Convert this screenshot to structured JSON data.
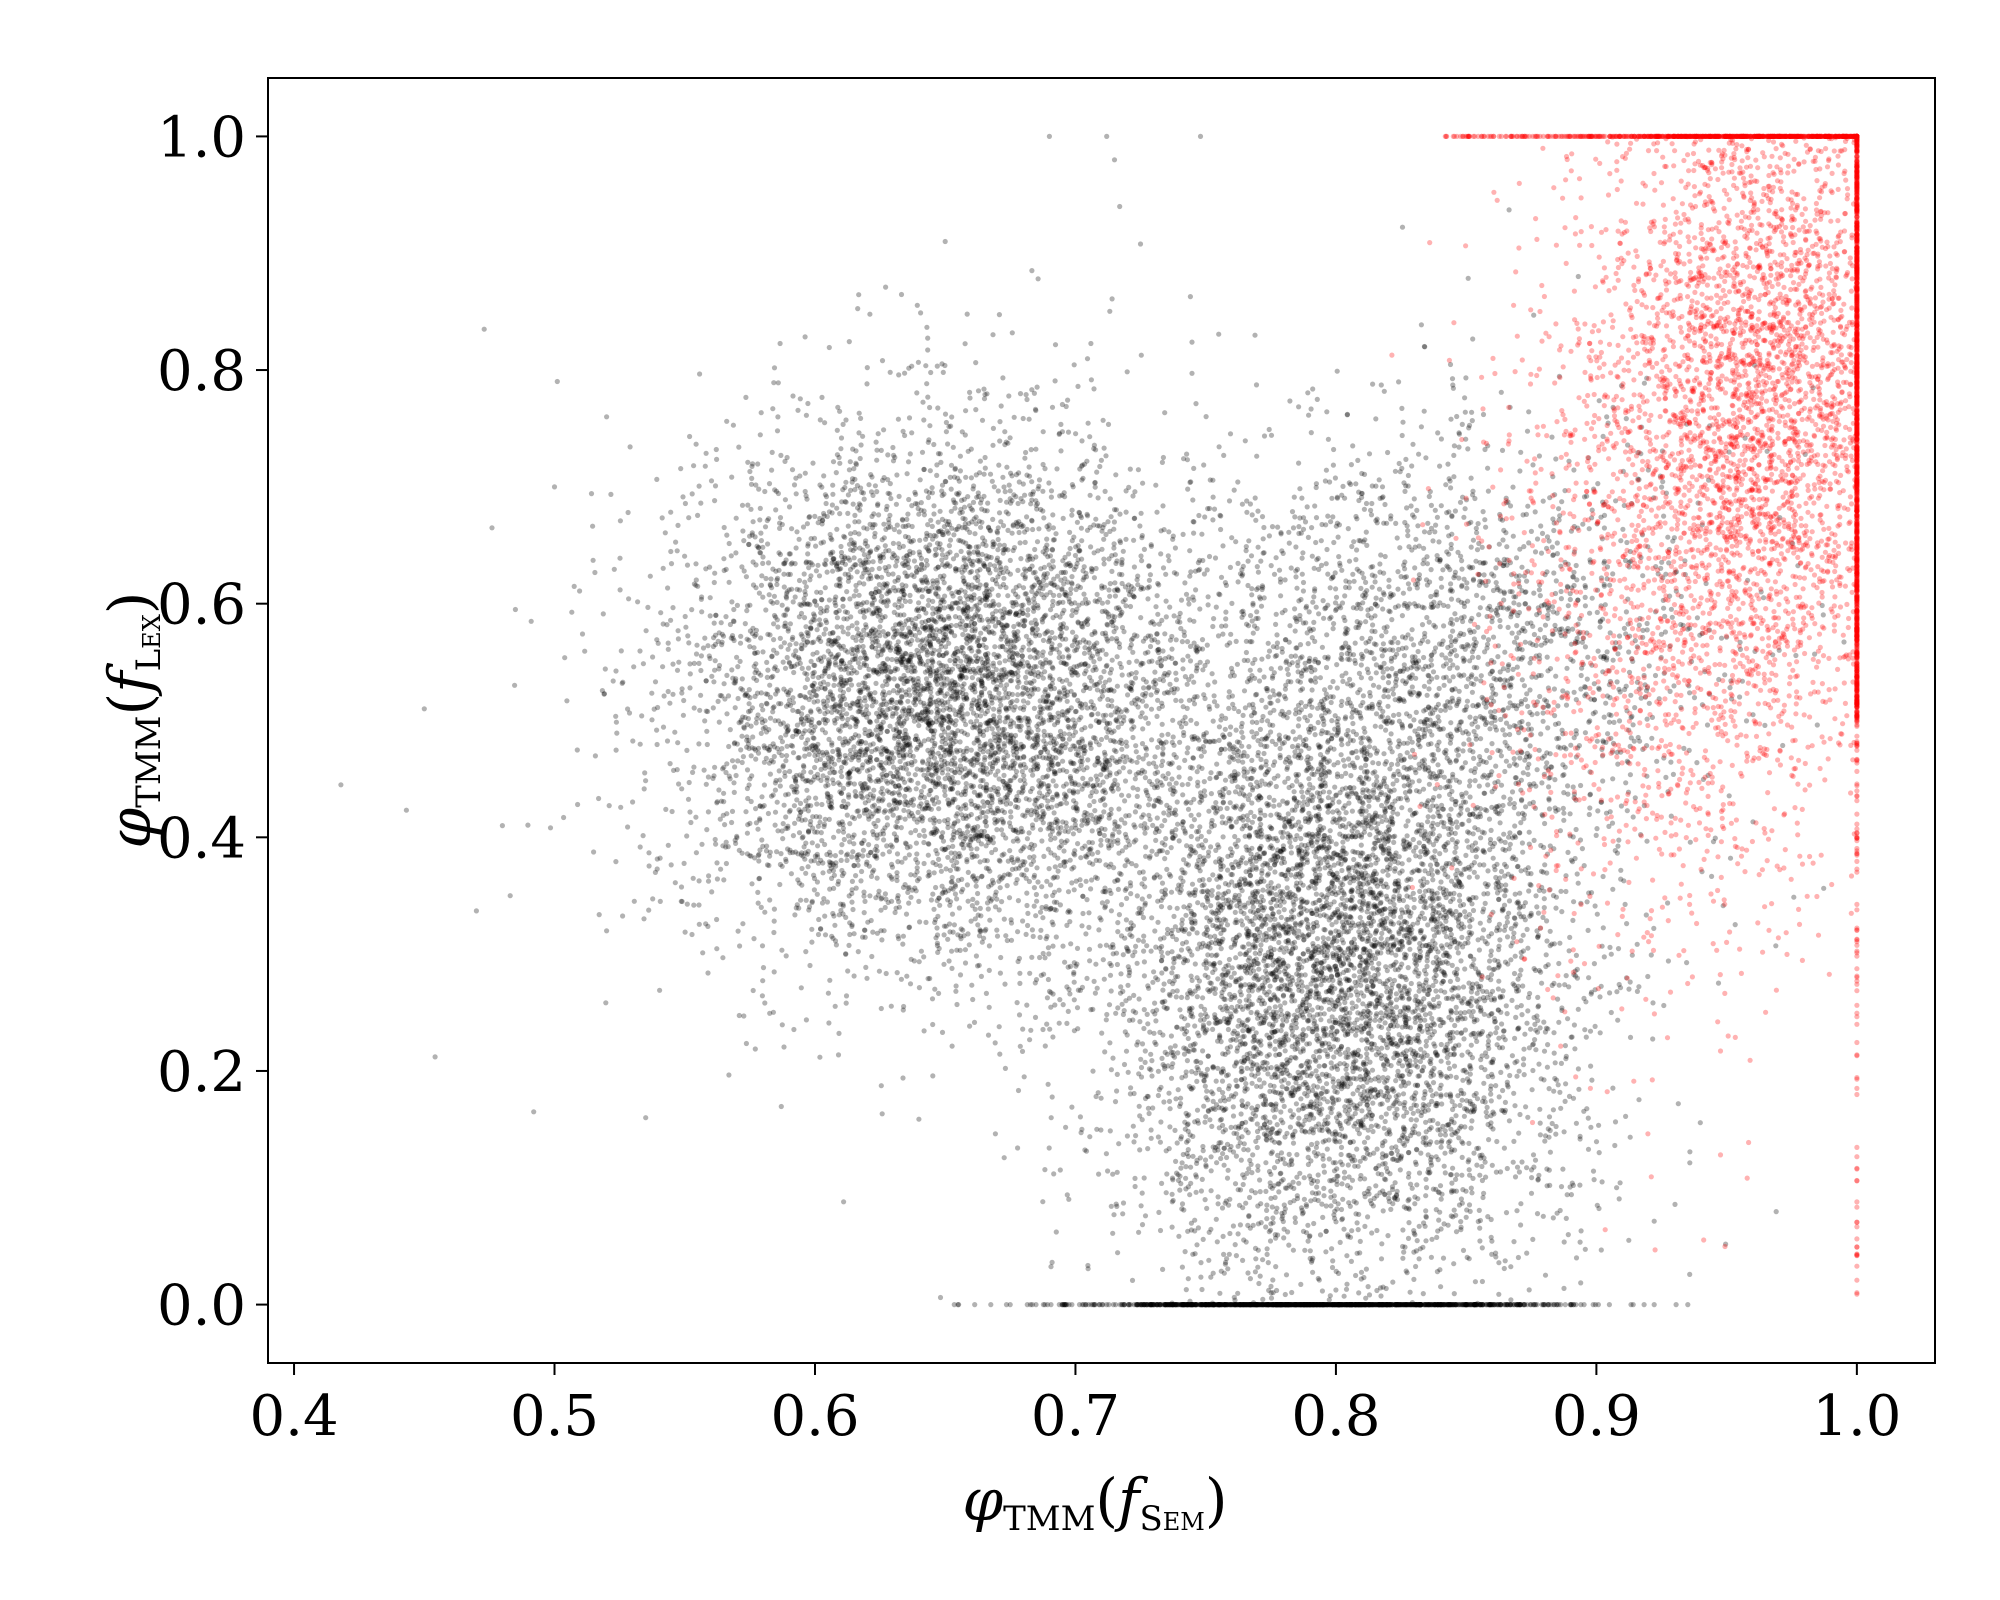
{
  "chart_data": {
    "type": "scatter",
    "title": "",
    "xlabel": {
      "symbol": "φ",
      "sub1": "TMM",
      "arg": "f",
      "sub2": "Sem"
    },
    "ylabel": {
      "symbol": "φ",
      "sub1": "TMM",
      "arg": "f",
      "sub2": "Lex"
    },
    "xlim": [
      0.39,
      1.03
    ],
    "ylim": [
      -0.05,
      1.05
    ],
    "xticks": [
      0.4,
      0.5,
      0.6,
      0.7,
      0.8,
      0.9,
      1.0
    ],
    "xtick_labels": [
      "0.4",
      "0.5",
      "0.6",
      "0.7",
      "0.8",
      "0.9",
      "1.0"
    ],
    "yticks": [
      0.0,
      0.2,
      0.4,
      0.6,
      0.8,
      1.0
    ],
    "ytick_labels": [
      "0.0",
      "0.2",
      "0.4",
      "0.6",
      "0.8",
      "1.0"
    ],
    "grid": false,
    "legend": false,
    "point_alpha": 0.3,
    "series": [
      {
        "color": "#000000",
        "clusters": [
          {
            "center": [
              0.65,
              0.52
            ],
            "spread": [
              0.05,
              0.11
            ],
            "count": 6500
          },
          {
            "center": [
              0.8,
              0.28
            ],
            "spread": [
              0.045,
              0.13
            ],
            "count": 6500
          },
          {
            "center": [
              0.84,
              0.56
            ],
            "spread": [
              0.05,
              0.1
            ],
            "count": 2000
          },
          {
            "center": [
              0.79,
              0.0
            ],
            "spread": [
              0.045,
              0.0
            ],
            "count": 1200,
            "y_fixed": 0.0
          }
        ],
        "points": [
          [
            0.418,
            0.445
          ],
          [
            0.45,
            0.51
          ],
          [
            0.473,
            0.835
          ],
          [
            0.476,
            0.665
          ],
          [
            0.47,
            0.337
          ],
          [
            0.483,
            0.35
          ],
          [
            0.48,
            0.41
          ],
          [
            0.492,
            0.165
          ],
          [
            0.485,
            0.595
          ],
          [
            0.69,
            1.0
          ],
          [
            0.712,
            1.0
          ],
          [
            0.715,
            0.98
          ],
          [
            0.748,
            1.0
          ],
          [
            0.717,
            0.94
          ],
          [
            0.65,
            0.91
          ],
          [
            0.611,
            0.088
          ],
          [
            0.535,
            0.16
          ],
          [
            0.52,
            0.32
          ],
          [
            0.5,
            0.7
          ],
          [
            0.52,
            0.76
          ]
        ]
      },
      {
        "color": "#ff0000",
        "clusters": [
          {
            "center": [
              0.965,
              0.78
            ],
            "spread": [
              0.03,
              0.16
            ],
            "count": 3500
          },
          {
            "center": [
              0.925,
              0.6
            ],
            "spread": [
              0.035,
              0.17
            ],
            "count": 1200
          }
        ],
        "edge_x": 1.0,
        "edge_y_range": [
          0.5,
          1.0
        ],
        "top_y": 1.0,
        "top_x_range": [
          0.825,
          1.0
        ]
      }
    ]
  }
}
